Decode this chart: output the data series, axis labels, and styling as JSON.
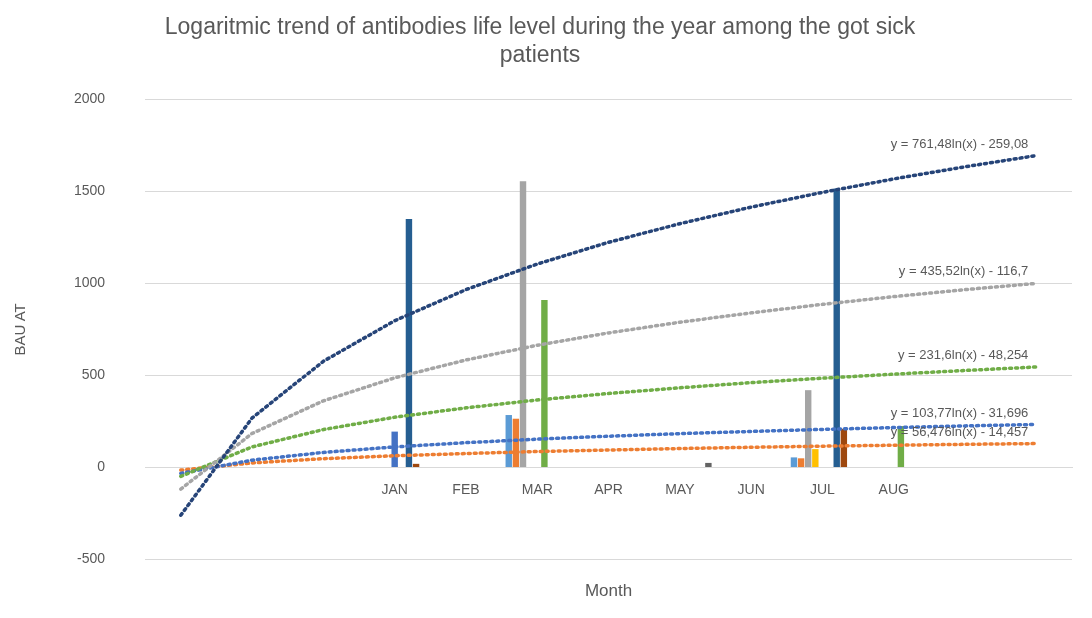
{
  "chart_data": {
    "type": "bar",
    "title": "Logaritmic trend of antibodies life level during the year among the got sick patients",
    "xlabel": "Month",
    "ylabel": "BAU AT",
    "categories": [
      null,
      null,
      null,
      "JAN",
      "FEB",
      "MAR",
      "APR",
      "MAY",
      "JUN",
      "JUL",
      "AUG",
      null,
      null
    ],
    "series": [
      {
        "color": "#5b9bd5",
        "values": [
          null,
          null,
          null,
          null,
          null,
          285,
          null,
          null,
          null,
          55,
          null,
          null,
          null
        ]
      },
      {
        "color": "#ed7d31",
        "values": [
          null,
          null,
          null,
          null,
          null,
          265,
          null,
          null,
          null,
          50,
          null,
          null,
          null
        ]
      },
      {
        "color": "#a5a5a5",
        "values": [
          null,
          null,
          null,
          null,
          null,
          1555,
          null,
          null,
          null,
          420,
          null,
          null,
          null
        ]
      },
      {
        "color": "#ffc000",
        "values": [
          null,
          null,
          null,
          null,
          null,
          null,
          null,
          null,
          null,
          100,
          null,
          null,
          null
        ]
      },
      {
        "color": "#4472c4",
        "values": [
          null,
          null,
          null,
          195,
          null,
          null,
          null,
          null,
          null,
          null,
          null,
          null,
          null
        ]
      },
      {
        "color": "#70ad47",
        "values": [
          null,
          null,
          null,
          null,
          null,
          910,
          null,
          null,
          null,
          null,
          225,
          null,
          null
        ]
      },
      {
        "color": "#255e91",
        "values": [
          null,
          null,
          null,
          1350,
          null,
          null,
          null,
          null,
          null,
          1515,
          null,
          null,
          null
        ]
      },
      {
        "color": "#9e480e",
        "values": [
          null,
          null,
          null,
          20,
          null,
          null,
          null,
          null,
          null,
          210,
          null,
          null,
          null
        ]
      },
      {
        "color": "#636363",
        "values": [
          null,
          null,
          null,
          null,
          null,
          null,
          null,
          25,
          null,
          null,
          null,
          null,
          null
        ]
      },
      {
        "type": "line",
        "color": "#264478",
        "values": [
          -259,
          269,
          577,
          797,
          966,
          1105,
          1223,
          1324,
          1414,
          1494,
          1567,
          1633,
          1694
        ]
      },
      {
        "type": "line",
        "color": "#a5a5a5",
        "values": [
          -117,
          185,
          362,
          487,
          584,
          664,
          731,
          789,
          840,
          886,
          928,
          966,
          1000
        ]
      },
      {
        "type": "line",
        "color": "#70ad47",
        "values": [
          -48,
          112,
          206,
          273,
          324,
          367,
          402,
          433,
          461,
          485,
          507,
          527,
          546
        ]
      },
      {
        "type": "line",
        "color": "#4472c4",
        "values": [
          -32,
          40,
          82,
          112,
          135,
          154,
          170,
          184,
          196,
          207,
          217,
          226,
          234
        ]
      },
      {
        "type": "line",
        "color": "#ed7d31",
        "values": [
          -14,
          25,
          48,
          64,
          76,
          87,
          95,
          103,
          110,
          116,
          121,
          126,
          130
        ]
      }
    ],
    "line_style": "dotted",
    "marker": "none",
    "annotations": [
      "y = 761,48ln(x) - 259,08",
      "y = 435,52ln(x) - 116,7",
      "y = 231,6ln(x) - 48,254",
      "y = 103,77ln(x) - 31,696",
      "y = 56,476ln(x) - 14,457"
    ],
    "ylim": [
      -500,
      2000
    ],
    "yticks": [
      -500,
      0,
      500,
      1000,
      1500,
      2000
    ],
    "grid": "y",
    "legend": false
  }
}
